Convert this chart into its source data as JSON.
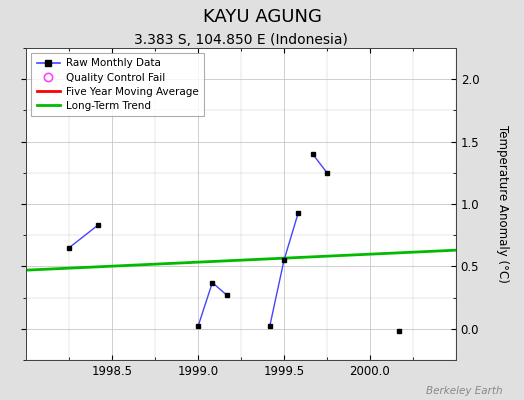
{
  "title": "KAYU AGUNG",
  "subtitle": "3.383 S, 104.850 E (Indonesia)",
  "watermark": "Berkeley Earth",
  "raw_x_segments": [
    [
      1998.25,
      1998.417
    ],
    [
      1999.0,
      1999.083,
      1999.167
    ],
    [
      1999.417,
      1999.5,
      1999.583
    ],
    [
      1999.667,
      1999.75
    ],
    [
      2000.167
    ]
  ],
  "raw_y_segments": [
    [
      0.65,
      0.83
    ],
    [
      0.02,
      0.37,
      0.27
    ],
    [
      0.02,
      0.55,
      0.93
    ],
    [
      1.4,
      1.25
    ],
    [
      -0.02
    ]
  ],
  "trend_x": [
    1998.0,
    2000.5
  ],
  "trend_y": [
    0.47,
    0.63
  ],
  "xlim": [
    1998.0,
    2000.5
  ],
  "ylim": [
    -0.25,
    2.25
  ],
  "yticks_right": [
    0,
    0.5,
    1.0,
    1.5,
    2.0
  ],
  "xticks": [
    1998.5,
    1999.0,
    1999.5,
    2000.0
  ],
  "line_color": "#4444ff",
  "marker_color": "#000000",
  "trend_color": "#00bb00",
  "mavg_color": "#ff0000",
  "bg_color": "#e0e0e0",
  "plot_bg_color": "#ffffff",
  "grid_color": "#c8c8c8",
  "title_fontsize": 13,
  "subtitle_fontsize": 10,
  "ylabel_right": "Temperature Anomaly (°C)"
}
